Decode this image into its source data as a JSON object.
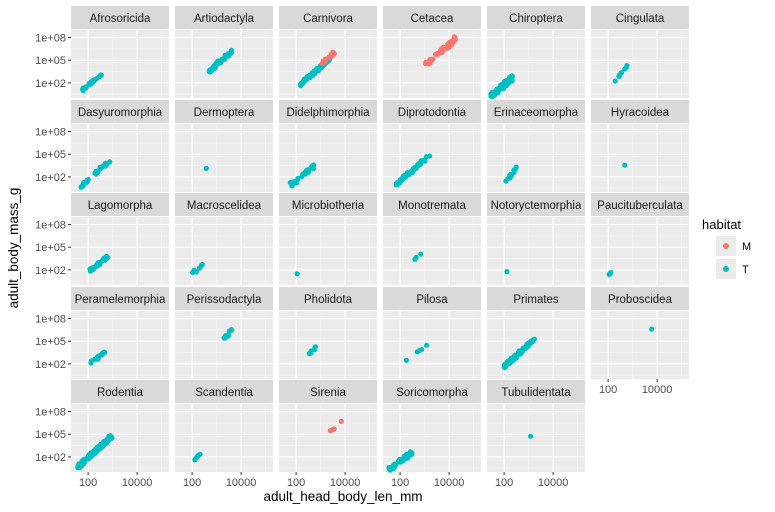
{
  "chart_data": {
    "type": "scatter",
    "xlabel": "adult_head_body_len_mm",
    "ylabel": "adult_body_mass_g",
    "x_scale": "log10",
    "y_scale": "log10",
    "x_ticks": [
      100,
      10000
    ],
    "x_tick_labels": [
      "100",
      "10000"
    ],
    "y_ticks": [
      100,
      100000,
      100000000
    ],
    "y_tick_labels": [
      "1e+02",
      "1e+05",
      "1e+08"
    ],
    "xlim": [
      20,
      200000
    ],
    "ylim": [
      1,
      1000000000
    ],
    "grid": true,
    "legend": {
      "title": "habitat",
      "placement": "right",
      "entries": [
        {
          "label": "M",
          "color": "#F8766D"
        },
        {
          "label": "T",
          "color": "#00BFC4"
        }
      ]
    },
    "colors": {
      "M": "#F8766D",
      "T": "#00BFC4"
    },
    "facets": [
      {
        "name": "Afrosoricida",
        "clouds": [
          {
            "habitat": "T",
            "x": [
              50,
              360
            ],
            "y": [
              8,
              1400
            ],
            "n": 22,
            "spread": 0.15
          }
        ]
      },
      {
        "name": "Artiodactyla",
        "clouds": [
          {
            "habitat": "T",
            "x": [
              500,
              4000
            ],
            "y": [
              3000,
              1500000
            ],
            "n": 60,
            "spread": 0.2
          }
        ]
      },
      {
        "name": "Carnivora",
        "clouds": [
          {
            "habitat": "T",
            "x": [
              150,
              2500
            ],
            "y": [
              60,
              200000
            ],
            "n": 70,
            "spread": 0.18
          },
          {
            "habitat": "M",
            "x": [
              1200,
              3500
            ],
            "y": [
              40000,
              1000000
            ],
            "n": 18,
            "spread": 0.15
          }
        ]
      },
      {
        "name": "Cetacea",
        "clouds": [
          {
            "habitat": "M",
            "x": [
              1200,
              20000
            ],
            "y": [
              30000,
              100000000
            ],
            "n": 55,
            "spread": 0.25
          }
        ]
      },
      {
        "name": "Chiroptera",
        "clouds": [
          {
            "habitat": "T",
            "x": [
              30,
              220
            ],
            "y": [
              2,
              500
            ],
            "n": 90,
            "spread": 0.25
          }
        ]
      },
      {
        "name": "Cingulata",
        "clouds": [
          {
            "habitat": "T",
            "x": [
              150,
              700
            ],
            "y": [
              100,
              25000
            ],
            "n": 8,
            "spread": 0.12
          }
        ]
      },
      {
        "name": "Dasyuromorphia",
        "clouds": [
          {
            "habitat": "T",
            "x": [
              50,
              900
            ],
            "y": [
              5,
              25000
            ],
            "n": 28,
            "spread": 0.15
          }
        ]
      },
      {
        "name": "Dermoptera",
        "points": [
          {
            "habitat": "T",
            "x": 380,
            "y": 1300
          }
        ]
      },
      {
        "name": "Didelphimorphia",
        "clouds": [
          {
            "habitat": "T",
            "x": [
              60,
              500
            ],
            "y": [
              8,
              2500
            ],
            "n": 38,
            "spread": 0.22
          }
        ]
      },
      {
        "name": "Diprotodontia",
        "clouds": [
          {
            "habitat": "T",
            "x": [
              70,
              1500
            ],
            "y": [
              10,
              60000
            ],
            "n": 55,
            "spread": 0.18
          }
        ]
      },
      {
        "name": "Erinaceomorpha",
        "clouds": [
          {
            "habitat": "T",
            "x": [
              100,
              350
            ],
            "y": [
              15,
              1500
            ],
            "n": 12,
            "spread": 0.2
          }
        ]
      },
      {
        "name": "Hyracoidea",
        "points": [
          {
            "habitat": "T",
            "x": 480,
            "y": 3500
          }
        ]
      },
      {
        "name": "Lagomorpha",
        "clouds": [
          {
            "habitat": "T",
            "x": [
              120,
              650
            ],
            "y": [
              80,
              6000
            ],
            "n": 32,
            "spread": 0.15
          }
        ]
      },
      {
        "name": "Macroscelidea",
        "points": [
          {
            "habitat": "T",
            "x": 105,
            "y": 45
          },
          {
            "habitat": "T",
            "x": 120,
            "y": 90
          },
          {
            "habitat": "T",
            "x": 150,
            "y": 55
          },
          {
            "habitat": "T",
            "x": 200,
            "y": 170
          },
          {
            "habitat": "T",
            "x": 240,
            "y": 380
          },
          {
            "habitat": "T",
            "x": 260,
            "y": 520
          }
        ]
      },
      {
        "name": "Microbiotheria",
        "points": [
          {
            "habitat": "T",
            "x": 110,
            "y": 30
          }
        ]
      },
      {
        "name": "Monotremata",
        "points": [
          {
            "habitat": "T",
            "x": 400,
            "y": 2500
          },
          {
            "habitat": "T",
            "x": 450,
            "y": 4500
          },
          {
            "habitat": "T",
            "x": 700,
            "y": 12000
          }
        ]
      },
      {
        "name": "Notoryctemorphia",
        "points": [
          {
            "habitat": "T",
            "x": 130,
            "y": 60
          }
        ]
      },
      {
        "name": "Paucituberculata",
        "points": [
          {
            "habitat": "T",
            "x": 110,
            "y": 25
          },
          {
            "habitat": "T",
            "x": 120,
            "y": 35
          },
          {
            "habitat": "T",
            "x": 130,
            "y": 45
          }
        ]
      },
      {
        "name": "Peramelemorphia",
        "clouds": [
          {
            "habitat": "T",
            "x": [
              130,
              500
            ],
            "y": [
              150,
              3500
            ],
            "n": 18,
            "spread": 0.15
          }
        ]
      },
      {
        "name": "Perissodactyla",
        "clouds": [
          {
            "habitat": "T",
            "x": [
              2000,
              4000
            ],
            "y": [
              200000,
              3000000
            ],
            "n": 12,
            "spread": 0.12
          }
        ]
      },
      {
        "name": "Pholidota",
        "clouds": [
          {
            "habitat": "T",
            "x": [
              350,
              700
            ],
            "y": [
              2000,
              25000
            ],
            "n": 7,
            "spread": 0.12
          }
        ]
      },
      {
        "name": "Pilosa",
        "points": [
          {
            "habitat": "T",
            "x": 180,
            "y": 300
          },
          {
            "habitat": "T",
            "x": 500,
            "y": 4000
          },
          {
            "habitat": "T",
            "x": 600,
            "y": 5500
          },
          {
            "habitat": "T",
            "x": 750,
            "y": 7500
          },
          {
            "habitat": "T",
            "x": 1200,
            "y": 30000
          }
        ]
      },
      {
        "name": "Primates",
        "clouds": [
          {
            "habitat": "T",
            "x": [
              100,
              1700
            ],
            "y": [
              40,
              170000
            ],
            "n": 90,
            "spread": 0.2
          }
        ]
      },
      {
        "name": "Proboscidea",
        "points": [
          {
            "habitat": "T",
            "x": 6000,
            "y": 4000000
          }
        ]
      },
      {
        "name": "Rodentia",
        "clouds": [
          {
            "habitat": "T",
            "x": [
              40,
              900
            ],
            "y": [
              5,
              60000
            ],
            "n": 130,
            "spread": 0.22
          }
        ]
      },
      {
        "name": "Scandentia",
        "points": [
          {
            "habitat": "T",
            "x": 130,
            "y": 40
          },
          {
            "habitat": "T",
            "x": 145,
            "y": 70
          },
          {
            "habitat": "T",
            "x": 160,
            "y": 110
          },
          {
            "habitat": "T",
            "x": 175,
            "y": 150
          },
          {
            "habitat": "T",
            "x": 195,
            "y": 190
          },
          {
            "habitat": "T",
            "x": 210,
            "y": 230
          }
        ]
      },
      {
        "name": "Sirenia",
        "points": [
          {
            "habitat": "M",
            "x": 2500,
            "y": 300000
          },
          {
            "habitat": "M",
            "x": 2800,
            "y": 350000
          },
          {
            "habitat": "M",
            "x": 3000,
            "y": 400000
          },
          {
            "habitat": "M",
            "x": 3300,
            "y": 450000
          },
          {
            "habitat": "M",
            "x": 3500,
            "y": 500000
          },
          {
            "habitat": "M",
            "x": 7000,
            "y": 5000000
          }
        ]
      },
      {
        "name": "Soricomorpha",
        "clouds": [
          {
            "habitat": "T",
            "x": [
              35,
              300
            ],
            "y": [
              2,
              350
            ],
            "n": 55,
            "spread": 0.22
          }
        ]
      },
      {
        "name": "Tubulidentata",
        "points": [
          {
            "habitat": "T",
            "x": 1200,
            "y": 55000
          }
        ]
      }
    ]
  }
}
